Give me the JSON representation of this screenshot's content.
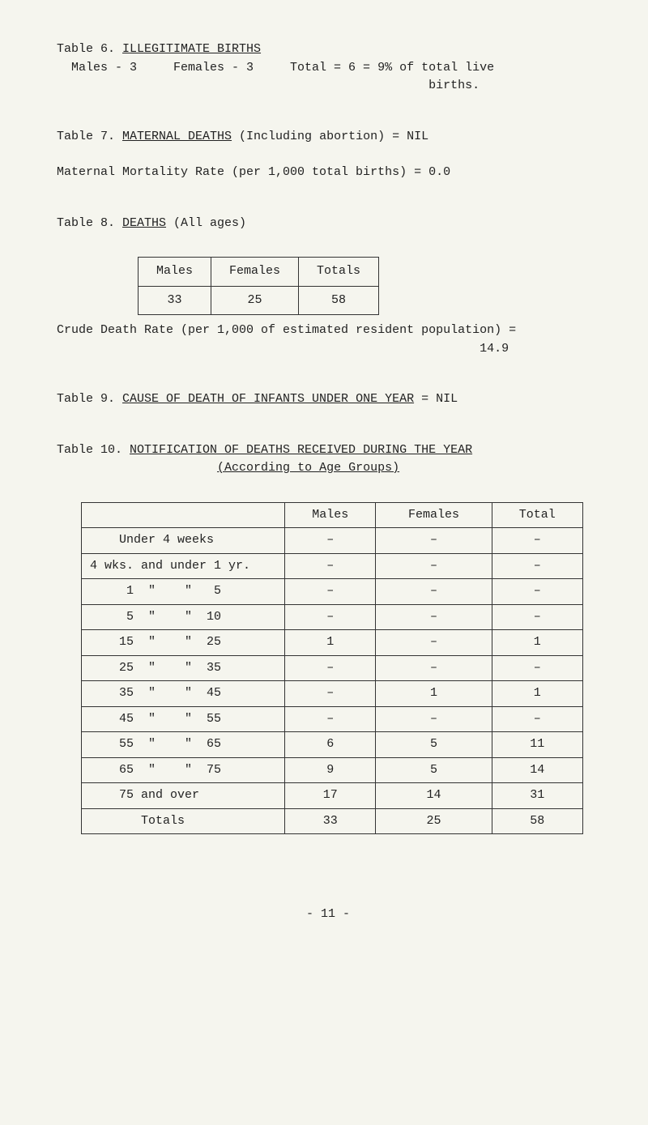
{
  "table6": {
    "heading_prefix": "Table 6.  ",
    "heading_title": "ILLEGITIMATE BIRTHS",
    "line1": "  Males - 3     Females - 3     Total = 6 = 9% of total live",
    "line2": "                                                   births."
  },
  "table7": {
    "heading_prefix": "Table 7.  ",
    "heading_title": "MATERNAL DEATHS",
    "heading_suffix": " (Including abortion) = NIL",
    "line1": "Maternal Mortality Rate (per 1,000 total births) = 0.0"
  },
  "table8": {
    "heading_prefix": "Table 8.  ",
    "heading_title": "DEATHS",
    "heading_suffix": " (All ages)",
    "headers": [
      "Males",
      "Females",
      "Totals"
    ],
    "row": [
      "33",
      "25",
      "58"
    ],
    "note": "Crude Death Rate (per 1,000 of estimated resident population) =",
    "note_val": "                                                          14.9"
  },
  "table9": {
    "heading_prefix": "  Table 9.  ",
    "heading_title": "CAUSE OF DEATH OF INFANTS UNDER ONE YEAR",
    "heading_suffix": " = NIL"
  },
  "table10": {
    "heading_prefix": "   Table 10.  ",
    "heading_title": "NOTIFICATION OF DEATHS RECEIVED DURING THE YEAR",
    "sub_indent": "                      ",
    "sub": "(According to Age Groups)",
    "headers": [
      "",
      "Males",
      "Females",
      "Total"
    ],
    "rows": [
      {
        "label": "    Under 4 weeks",
        "m": "–",
        "f": "–",
        "t": "–"
      },
      {
        "label": "4 wks. and under 1 yr.",
        "m": "–",
        "f": "–",
        "t": "–"
      },
      {
        "label": "     1  \"    \"   5",
        "m": "–",
        "f": "–",
        "t": "–"
      },
      {
        "label": "     5  \"    \"  10",
        "m": "–",
        "f": "–",
        "t": "–"
      },
      {
        "label": "    15  \"    \"  25",
        "m": "1",
        "f": "–",
        "t": "1"
      },
      {
        "label": "    25  \"    \"  35",
        "m": "–",
        "f": "–",
        "t": "–"
      },
      {
        "label": "    35  \"    \"  45",
        "m": "–",
        "f": "1",
        "t": "1"
      },
      {
        "label": "    45  \"    \"  55",
        "m": "–",
        "f": "–",
        "t": "–"
      },
      {
        "label": "    55  \"    \"  65",
        "m": "6",
        "f": "5",
        "t": "11"
      },
      {
        "label": "    65  \"    \"  75",
        "m": "9",
        "f": "5",
        "t": "14"
      },
      {
        "label": "    75 and over",
        "m": "17",
        "f": "14",
        "t": "31"
      }
    ],
    "totals": {
      "label": "       Totals",
      "m": "33",
      "f": "25",
      "t": "58"
    }
  },
  "footer": "- 11 -"
}
